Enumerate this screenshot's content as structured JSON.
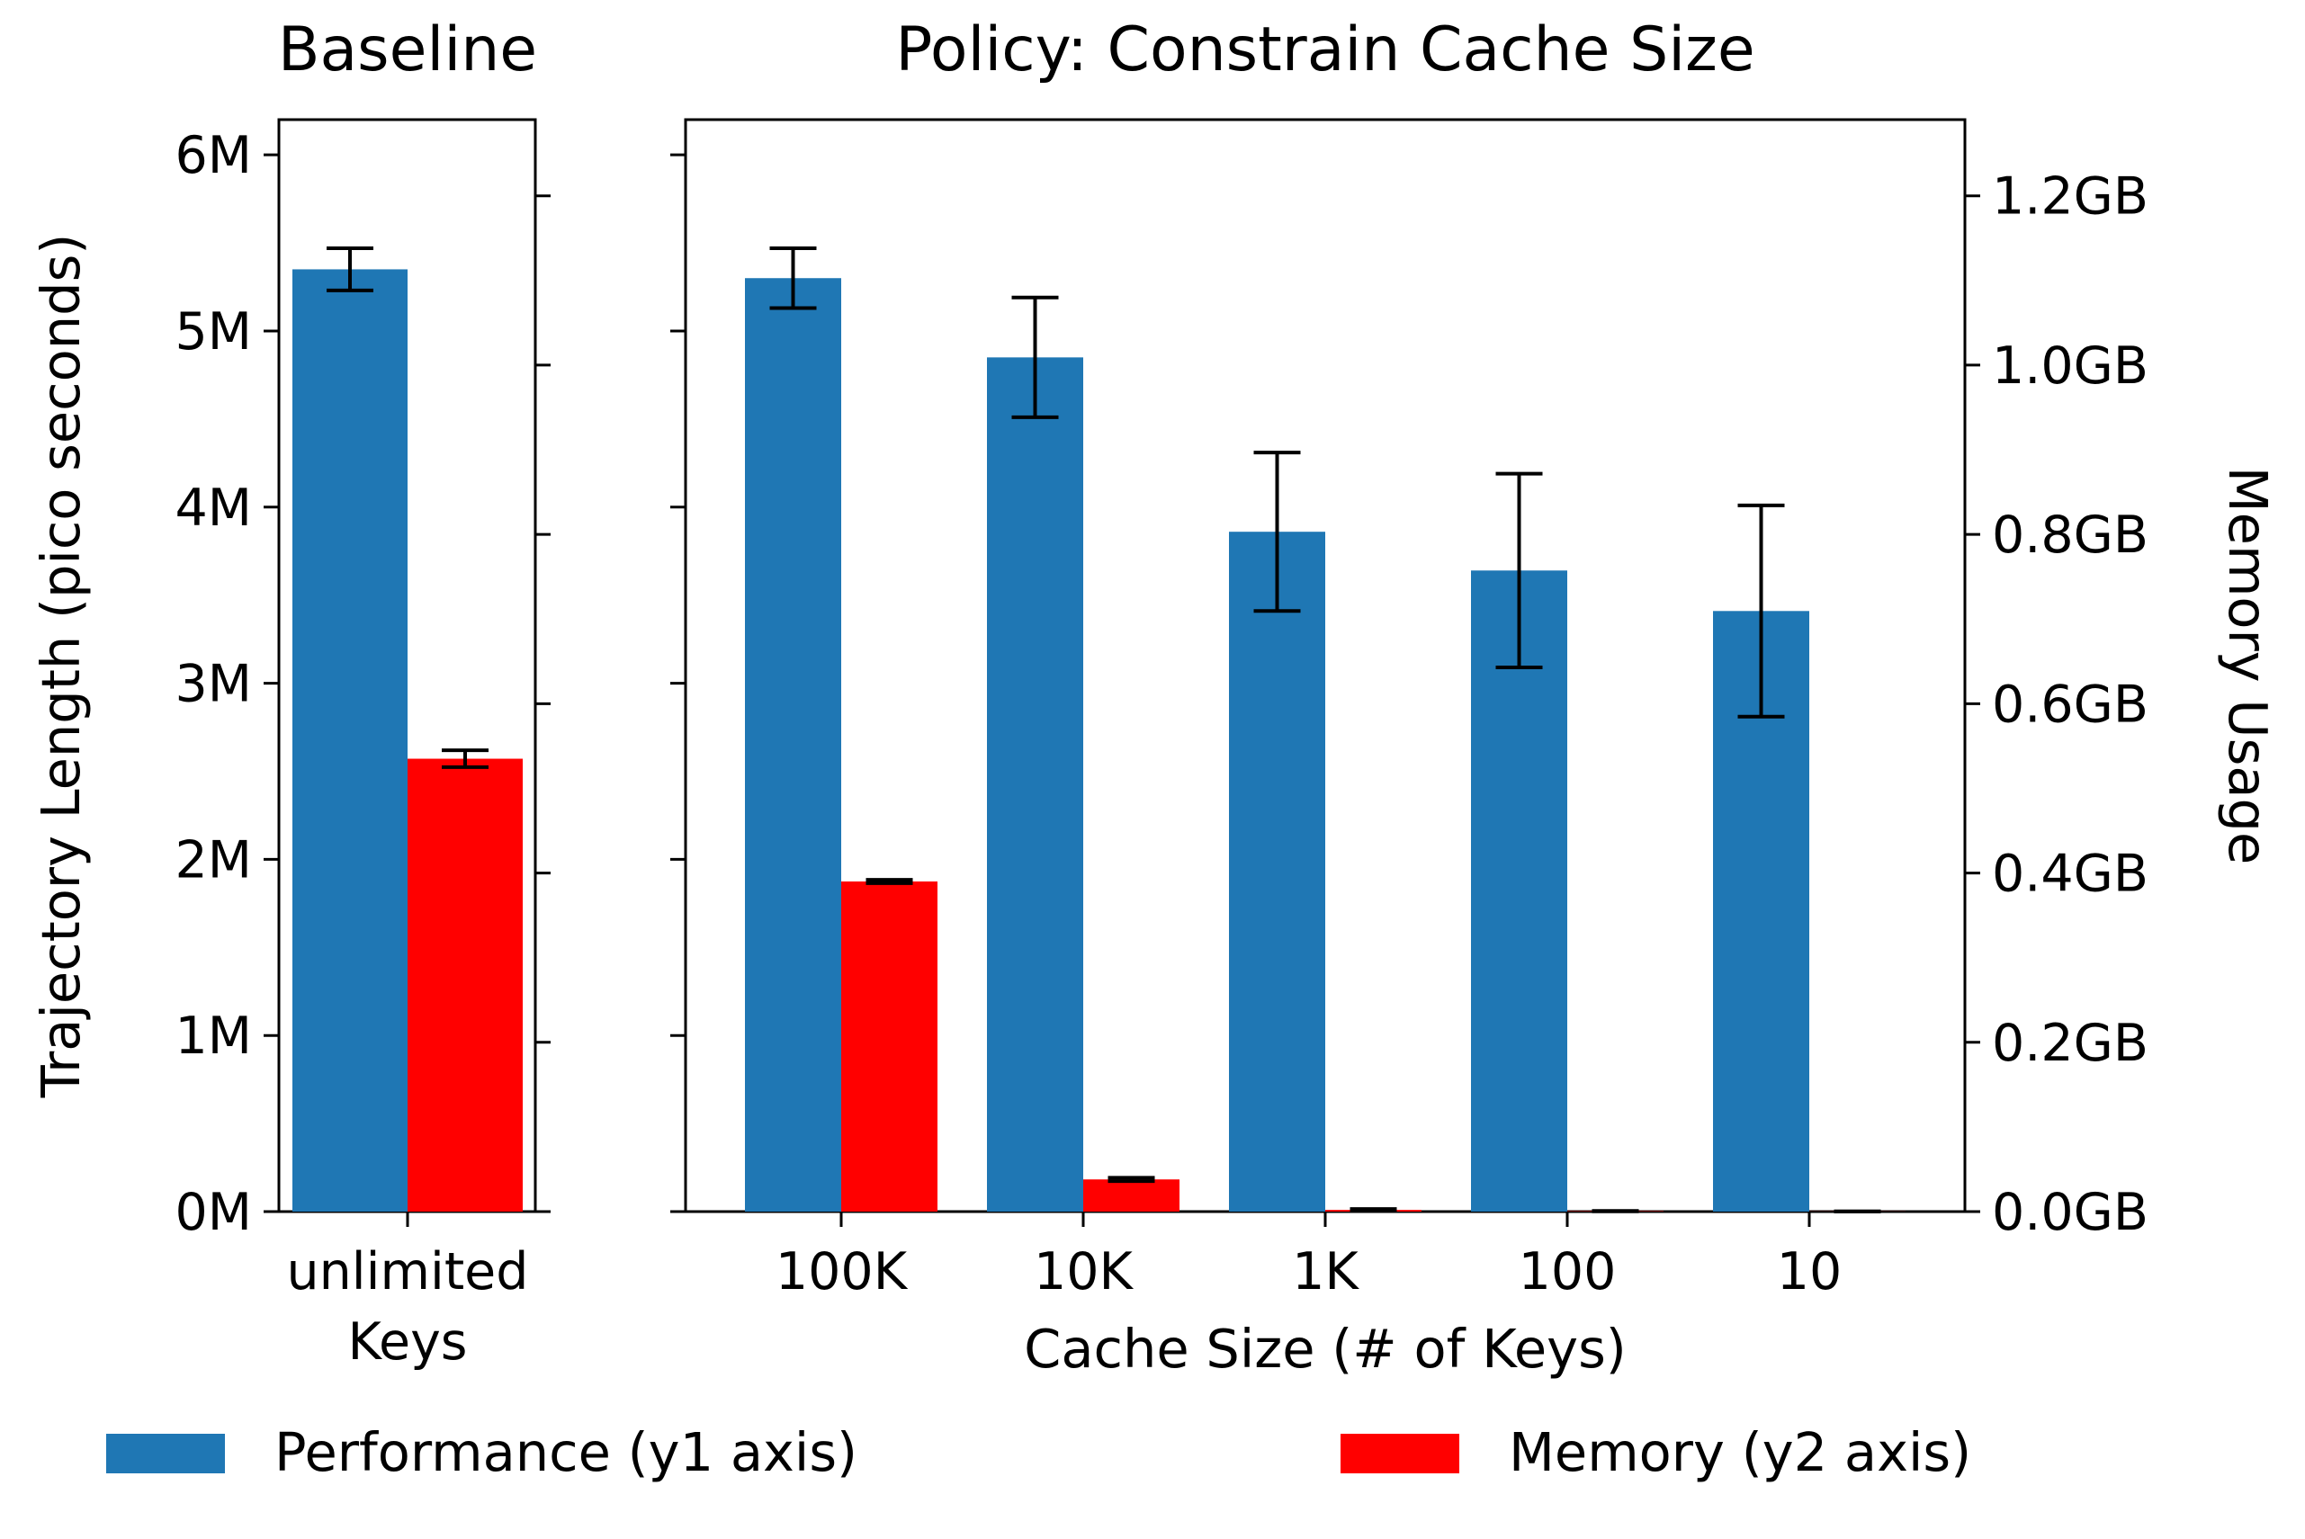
{
  "chart_data": [
    {
      "type": "bar",
      "title": "Baseline",
      "categories": [
        "unlimited\nKeys"
      ],
      "ylabel": "Trajectory Length (pico seconds)",
      "y1_ticks": [
        "0M",
        "1M",
        "2M",
        "3M",
        "4M",
        "5M",
        "6M"
      ],
      "ylim_y1": [
        0,
        6200000
      ],
      "ylim_y2": [
        0,
        1.29
      ],
      "series": [
        {
          "name": "Performance (y1 axis)",
          "axis": "y1",
          "color": "#1f77b4",
          "values": [
            5350000
          ],
          "errors": [
            120000
          ]
        },
        {
          "name": "Memory (y2 axis)",
          "axis": "y2",
          "color": "#ff0000",
          "values": [
            0.535
          ],
          "errors": [
            0.01
          ]
        }
      ]
    },
    {
      "type": "bar",
      "title": "Policy: Constrain Cache Size",
      "xlabel": "Cache Size (# of Keys)",
      "categories": [
        "100K",
        "10K",
        "1K",
        "100",
        "10"
      ],
      "y2label": "Memory Usage",
      "y2_ticks": [
        "0.0GB",
        "0.2GB",
        "0.4GB",
        "0.6GB",
        "0.8GB",
        "1.0GB",
        "1.2GB"
      ],
      "ylim_y1": [
        0,
        6200000
      ],
      "ylim_y2": [
        0,
        1.29
      ],
      "series": [
        {
          "name": "Performance (y1 axis)",
          "axis": "y1",
          "color": "#1f77b4",
          "values": [
            5300000,
            4850000,
            3860000,
            3640000,
            3410000
          ],
          "errors": [
            170000,
            340000,
            450000,
            550000,
            600000
          ]
        },
        {
          "name": "Memory (y2 axis)",
          "axis": "y2",
          "color": "#ff0000",
          "values": [
            0.39,
            0.038,
            0.002,
            0.0005,
            0.0002
          ],
          "errors": [
            0.002,
            0.002,
            0.001,
            0.0003,
            0.0001
          ]
        }
      ]
    }
  ],
  "legend": {
    "items": [
      {
        "label": "Performance (y1 axis)",
        "color": "#1f77b4"
      },
      {
        "label": "Memory (y2 axis)",
        "color": "#ff0000"
      }
    ]
  }
}
